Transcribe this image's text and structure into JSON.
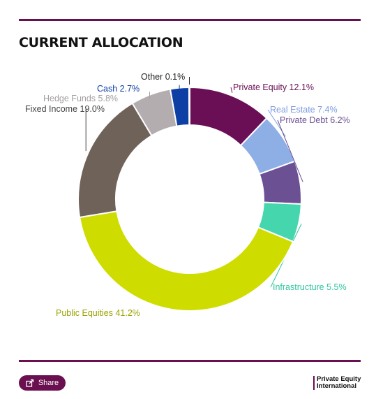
{
  "page": {
    "title": "CURRENT ALLOCATION",
    "share_label": "Share",
    "brand_line1": "Private Equity",
    "brand_line2": "International",
    "accent_color": "#6a0f4f",
    "share_icon": "share-icon"
  },
  "chart_data": {
    "type": "pie",
    "style": "donut",
    "title": "CURRENT ALLOCATION",
    "slices": [
      {
        "label": "Private Equity 12.1%",
        "name": "Private Equity",
        "value": 12.1,
        "color": "#6a0f55"
      },
      {
        "label": "Real Estate 7.4%",
        "name": "Real Estate",
        "value": 7.4,
        "color": "#8eaee6"
      },
      {
        "label": "Private Debt 6.2%",
        "name": "Private Debt",
        "value": 6.2,
        "color": "#6b5094"
      },
      {
        "label": "Infrastructure 5.5%",
        "name": "Infrastructure",
        "value": 5.5,
        "color": "#45d6ae"
      },
      {
        "label": "Public Equities 41.2%",
        "name": "Public Equities",
        "value": 41.2,
        "color": "#cfdc00"
      },
      {
        "label": "Fixed Income 19.0%",
        "name": "Fixed Income",
        "value": 19.0,
        "color": "#6f6259"
      },
      {
        "label": "Hedge Funds 5.8%",
        "name": "Hedge Funds",
        "value": 5.8,
        "color": "#b3adb0"
      },
      {
        "label": "Cash 2.7%",
        "name": "Cash",
        "value": 2.7,
        "color": "#0d3fa5"
      },
      {
        "label": "Other 0.1%",
        "name": "Other",
        "value": 0.1,
        "color": "#111111"
      }
    ]
  }
}
